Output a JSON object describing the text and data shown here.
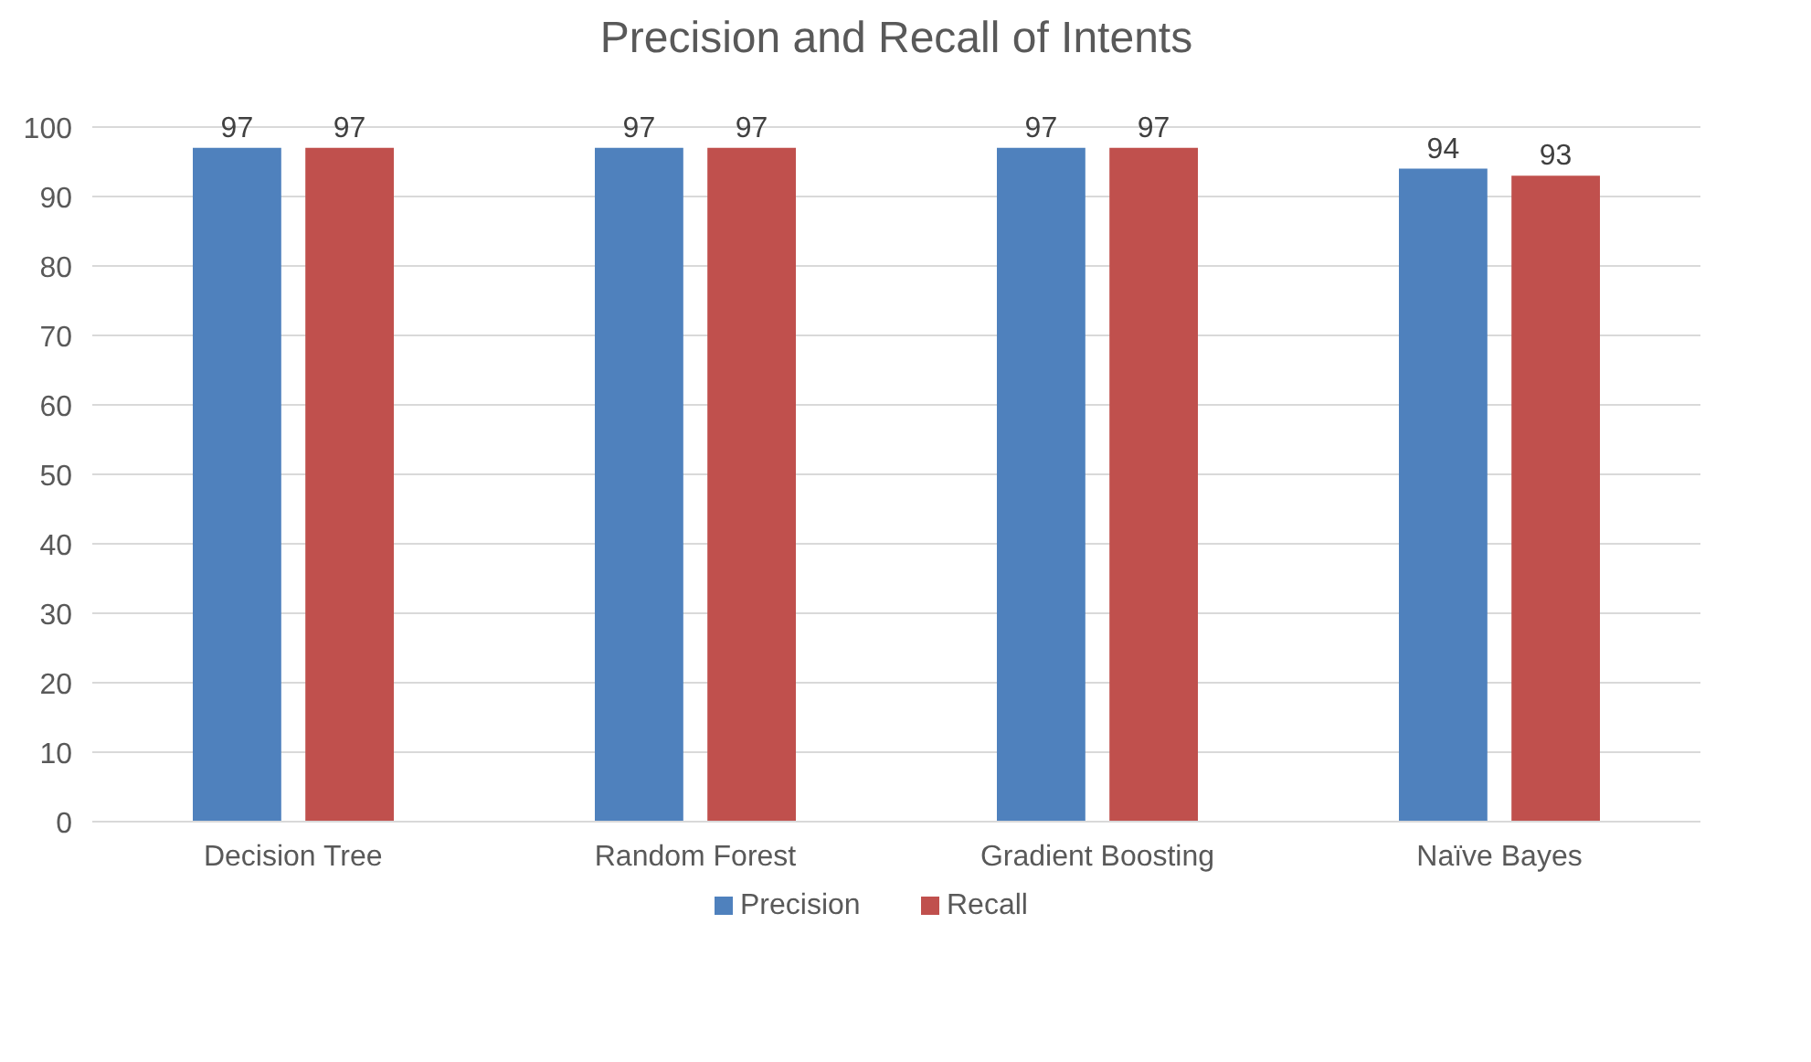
{
  "chart_data": {
    "type": "bar",
    "title": "Precision and Recall of Intents",
    "categories": [
      "Decision Tree",
      "Random Forest",
      "Gradient Boosting",
      "Naïve Bayes"
    ],
    "series": [
      {
        "name": "Precision",
        "color": "#4f81bd",
        "values": [
          97,
          97,
          97,
          94
        ]
      },
      {
        "name": "Recall",
        "color": "#c0504d",
        "values": [
          97,
          97,
          97,
          93
        ]
      }
    ],
    "ylim": [
      0,
      100
    ],
    "yticks": [
      0,
      10,
      20,
      30,
      40,
      50,
      60,
      70,
      80,
      90,
      100
    ],
    "grid": "y",
    "legend": "bottom",
    "data_labels": true
  }
}
